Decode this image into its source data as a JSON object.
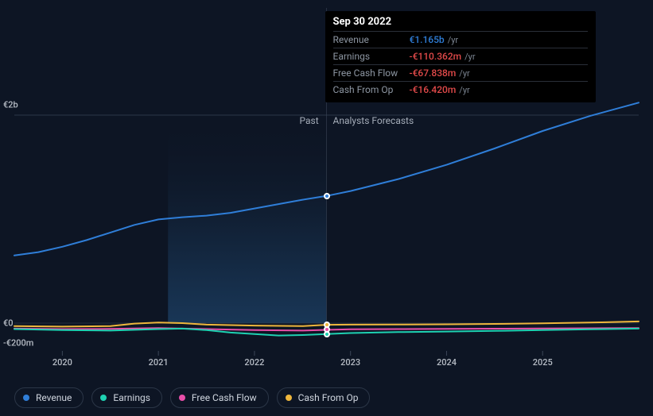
{
  "chart": {
    "type": "line",
    "background_color": "#0d1524",
    "past_gradient_from": "#1a3a5c",
    "past_gradient_to": "#0d1524",
    "grid_divider_color": "#2b3647",
    "axis_line_color": "#3a4557",
    "xlim": [
      2019.5,
      2026.0
    ],
    "ylim_money": [
      -200000000,
      2000000000
    ],
    "y_ticks": [
      {
        "value": 2000000000,
        "label": "€2b"
      },
      {
        "value": 0,
        "label": "€0"
      },
      {
        "value": -200000000,
        "label": "-€200m"
      }
    ],
    "x_ticks": [
      {
        "value": 2020,
        "label": "2020"
      },
      {
        "value": 2021,
        "label": "2021"
      },
      {
        "value": 2022,
        "label": "2022"
      },
      {
        "value": 2023,
        "label": "2023"
      },
      {
        "value": 2024,
        "label": "2024"
      },
      {
        "value": 2025,
        "label": "2025"
      }
    ],
    "past_future_split": 2022.75,
    "past_label": "Past",
    "forecast_label": "Analysts Forecasts",
    "label_fontsize": 12,
    "tick_fontsize": 11,
    "tick_color": "#b7bdc6",
    "line_width": 2,
    "series": {
      "revenue": {
        "label": "Revenue",
        "color": "#2f7ed8",
        "points": [
          [
            2019.5,
            620000000
          ],
          [
            2019.75,
            650000000
          ],
          [
            2020.0,
            700000000
          ],
          [
            2020.25,
            760000000
          ],
          [
            2020.5,
            830000000
          ],
          [
            2020.75,
            900000000
          ],
          [
            2021.0,
            950000000
          ],
          [
            2021.25,
            970000000
          ],
          [
            2021.5,
            985000000
          ],
          [
            2021.75,
            1010000000
          ],
          [
            2022.0,
            1050000000
          ],
          [
            2022.25,
            1090000000
          ],
          [
            2022.5,
            1130000000
          ],
          [
            2022.75,
            1165000000
          ],
          [
            2023.0,
            1210000000
          ],
          [
            2023.5,
            1320000000
          ],
          [
            2024.0,
            1450000000
          ],
          [
            2024.5,
            1600000000
          ],
          [
            2025.0,
            1760000000
          ],
          [
            2025.5,
            1900000000
          ],
          [
            2026.0,
            2020000000
          ]
        ]
      },
      "earnings": {
        "label": "Earnings",
        "color": "#1fd1b2",
        "points": [
          [
            2019.5,
            -60000000
          ],
          [
            2020.0,
            -70000000
          ],
          [
            2020.5,
            -75000000
          ],
          [
            2021.0,
            -60000000
          ],
          [
            2021.25,
            -55000000
          ],
          [
            2021.5,
            -70000000
          ],
          [
            2021.75,
            -95000000
          ],
          [
            2022.0,
            -110000000
          ],
          [
            2022.25,
            -125000000
          ],
          [
            2022.5,
            -120000000
          ],
          [
            2022.75,
            -110362000
          ],
          [
            2023.0,
            -100000000
          ],
          [
            2023.5,
            -90000000
          ],
          [
            2024.0,
            -85000000
          ],
          [
            2024.5,
            -78000000
          ],
          [
            2025.0,
            -70000000
          ],
          [
            2025.5,
            -62000000
          ],
          [
            2026.0,
            -55000000
          ]
        ]
      },
      "free_cash_flow": {
        "label": "Free Cash Flow",
        "color": "#e84fa9",
        "points": [
          [
            2019.5,
            -55000000
          ],
          [
            2020.0,
            -60000000
          ],
          [
            2020.5,
            -58000000
          ],
          [
            2021.0,
            -50000000
          ],
          [
            2021.5,
            -60000000
          ],
          [
            2022.0,
            -70000000
          ],
          [
            2022.5,
            -75000000
          ],
          [
            2022.75,
            -67838000
          ],
          [
            2023.0,
            -62000000
          ],
          [
            2023.5,
            -60000000
          ],
          [
            2024.0,
            -58000000
          ],
          [
            2024.5,
            -56000000
          ],
          [
            2025.0,
            -54000000
          ],
          [
            2025.5,
            -52000000
          ],
          [
            2026.0,
            -50000000
          ]
        ]
      },
      "cash_from_op": {
        "label": "Cash From Op",
        "color": "#eeb63c",
        "points": [
          [
            2019.5,
            -30000000
          ],
          [
            2020.0,
            -35000000
          ],
          [
            2020.5,
            -30000000
          ],
          [
            2020.75,
            -5000000
          ],
          [
            2021.0,
            5000000
          ],
          [
            2021.25,
            0
          ],
          [
            2021.5,
            -15000000
          ],
          [
            2022.0,
            -25000000
          ],
          [
            2022.5,
            -30000000
          ],
          [
            2022.75,
            -16420000
          ],
          [
            2023.0,
            -15000000
          ],
          [
            2023.5,
            -14000000
          ],
          [
            2024.0,
            -12000000
          ],
          [
            2024.5,
            -8000000
          ],
          [
            2025.0,
            -2000000
          ],
          [
            2025.5,
            5000000
          ],
          [
            2026.0,
            15000000
          ]
        ]
      }
    }
  },
  "tooltip": {
    "title": "Sep 30 2022",
    "unit": "/yr",
    "rows": [
      {
        "key": "revenue",
        "label": "Revenue",
        "value": "€1.165b",
        "color": "#2f7ed8"
      },
      {
        "key": "earnings",
        "label": "Earnings",
        "value": "-€110.362m",
        "color": "#e24a4a"
      },
      {
        "key": "fcf",
        "label": "Free Cash Flow",
        "value": "-€67.838m",
        "color": "#e24a4a"
      },
      {
        "key": "cfo",
        "label": "Cash From Op",
        "value": "-€16.420m",
        "color": "#e24a4a"
      }
    ]
  },
  "legend": {
    "border_color": "#2b3647",
    "text_color": "#cfd5de",
    "items": [
      {
        "key": "revenue",
        "label": "Revenue",
        "color": "#2f7ed8"
      },
      {
        "key": "earnings",
        "label": "Earnings",
        "color": "#1fd1b2"
      },
      {
        "key": "fcf",
        "label": "Free Cash Flow",
        "color": "#e84fa9"
      },
      {
        "key": "cfo",
        "label": "Cash From Op",
        "color": "#eeb63c"
      }
    ]
  }
}
